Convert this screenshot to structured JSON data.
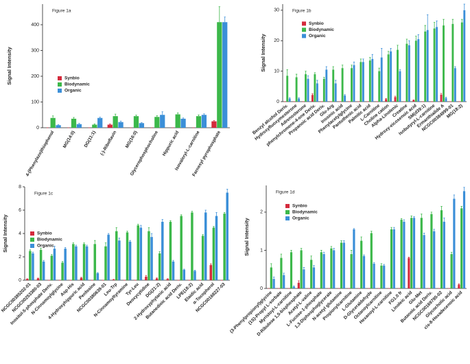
{
  "chart_data": [
    {
      "type": "bar",
      "title": "Figure 1a",
      "y_label": "Signal Intensity",
      "legend": "center-left",
      "categories": [
        "4-(Phenylazo)thiophenol",
        "MG(14:0)",
        "DG(11:1)",
        "(-)-Riboflavin",
        "MG(16:0)",
        "Glycerophosphocholine",
        "Hippuric acid",
        "Isovaleryl-L-carnitine",
        "Farnesyl pyrophosphate"
      ],
      "series": [
        {
          "name": "Synbio",
          "color": "#d42a3c",
          "values": [
            0,
            0,
            0,
            12,
            0,
            0,
            0,
            0,
            25
          ],
          "errors": [
            0,
            0,
            0,
            3,
            0,
            0,
            0,
            0,
            3
          ]
        },
        {
          "name": "Biodynamic",
          "color": "#3cb84a",
          "values": [
            38,
            35,
            12,
            45,
            45,
            42,
            52,
            45,
            410
          ],
          "errors": [
            8,
            5,
            3,
            8,
            4,
            5,
            6,
            5,
            60
          ]
        },
        {
          "name": "Organic",
          "color": "#3b8fd8",
          "values": [
            10,
            14,
            38,
            22,
            18,
            50,
            35,
            50,
            410
          ],
          "errors": [
            2,
            3,
            3,
            4,
            2,
            12,
            3,
            4,
            20
          ]
        }
      ],
      "ylim": [
        0,
        480
      ],
      "yticks": [
        0,
        100,
        200,
        300,
        400
      ]
    },
    {
      "type": "bar",
      "title": "Figure 1b",
      "y_label": "Signal Intensity",
      "legend": "upper-left",
      "categories": [
        "Benzyl alcohol Deriv.",
        "Hydroxyfluoxymesterone",
        "Adrenosterone",
        "phenylchromene-4-one Deriv.",
        "Propanoic acid Deriv.",
        "Glu-Arg",
        "Inosinic acid",
        "Phenylacetylglycine",
        "Pantothenic acid",
        "Palmitic acid",
        "L-Carnitine",
        "Choline cation",
        "Alpha-Linolenic",
        "Creatine",
        "Hydroxy-eicosenoic acid",
        "SM(d39:1)",
        "Isobutyryl-L-carnitine",
        "Ermanthialide A",
        "NCGC00384999-01",
        "MG(18:2)"
      ],
      "series": [
        {
          "name": "Synbio",
          "color": "#d42a3c",
          "values": [
            0,
            0,
            0,
            2.2,
            0,
            0,
            0,
            0,
            0,
            0,
            0,
            0.8,
            1.5,
            0,
            0.5,
            0,
            0,
            2.3,
            0,
            0
          ],
          "errors": [
            0,
            0,
            0,
            0.4,
            0,
            0,
            0,
            0,
            0,
            0,
            0,
            0.2,
            0.3,
            0,
            0.1,
            0,
            0,
            0.4,
            0,
            0
          ]
        },
        {
          "name": "Biodynamic",
          "color": "#3cb84a",
          "values": [
            8.5,
            8,
            9,
            9,
            7.5,
            10.5,
            11,
            11,
            13,
            13.5,
            10,
            15.5,
            17,
            19,
            20,
            23,
            24,
            25,
            25.5,
            26
          ],
          "errors": [
            2,
            1,
            1,
            0.5,
            0.5,
            1,
            1,
            1,
            1,
            1,
            1,
            1,
            1.5,
            1.5,
            1.5,
            2,
            2,
            2,
            1.5,
            1
          ]
        },
        {
          "name": "Organic",
          "color": "#3b8fd8",
          "values": [
            1,
            1,
            7.5,
            6,
            10.5,
            6,
            2,
            12,
            13,
            14,
            14.5,
            16.5,
            10,
            18.5,
            20.5,
            23.5,
            24.5,
            1.2,
            11,
            30
          ],
          "errors": [
            0.3,
            0.3,
            1,
            1,
            1,
            1,
            0.3,
            1,
            1,
            1.5,
            3,
            1,
            0.5,
            1.5,
            1.5,
            5,
            2,
            0.3,
            0.5,
            2
          ]
        }
      ],
      "ylim": [
        0,
        32
      ],
      "yticks": [
        0,
        10,
        20,
        30
      ]
    },
    {
      "type": "bar",
      "title": "Figure 1c",
      "y_label": "Signal Intensity",
      "legend": "lower-left",
      "categories": [
        "NCGC00385202-01",
        "NCGC00253380-03",
        "Inositol-5-phosphate Deriv.",
        "N-Cinnamoylglycine",
        "Asp-His",
        "4-Hydroxyhippuric acid",
        "Penfosine",
        "NCGC00380639-01",
        "Leu-Trp",
        "N-Cinnamoyltyramine",
        "Tyr-Leu",
        "Deoxycytidine",
        "DG(21:2)",
        "2-Hydroxyphytanic acid",
        "Butanedioic acid Deriv.",
        "LPE(18:2)",
        "Elaidic acid",
        "α-Tocopherol",
        "NCGC00168227-03"
      ],
      "series": [
        {
          "name": "Synbio",
          "color": "#d42a3c",
          "values": [
            0.1,
            0.15,
            0,
            0,
            0,
            0.2,
            0,
            0,
            0.05,
            0,
            0,
            0.3,
            0.15,
            0.1,
            0,
            0,
            0,
            1.3,
            0
          ],
          "errors": [
            0.02,
            0.03,
            0,
            0,
            0,
            0.05,
            0,
            0,
            0.02,
            0,
            0,
            0.1,
            0.05,
            0.03,
            0,
            0,
            0,
            0.1,
            0
          ]
        },
        {
          "name": "Biodynamic",
          "color": "#3cb84a",
          "values": [
            2.5,
            2.6,
            2.1,
            1.5,
            3.1,
            3.1,
            3.1,
            2.9,
            4.2,
            4.1,
            4.7,
            4.2,
            2.3,
            5.0,
            5.5,
            5.8,
            3.8,
            4.5,
            5.7
          ],
          "errors": [
            0.1,
            0.15,
            0.1,
            0.1,
            0.1,
            0.1,
            0.3,
            0.3,
            0.3,
            0.1,
            0.1,
            0.3,
            0.15,
            0.1,
            0.1,
            0.1,
            0.1,
            0.1,
            0.1
          ]
        },
        {
          "name": "Organic",
          "color": "#3b8fd8",
          "values": [
            2.3,
            1.6,
            2.7,
            2.7,
            2.9,
            2.9,
            0.6,
            3.9,
            3.4,
            3.3,
            4.5,
            3.7,
            5.0,
            1.6,
            0.9,
            0.8,
            5.8,
            5.5,
            7.5
          ],
          "errors": [
            0.1,
            0.1,
            0.2,
            0.1,
            0.1,
            0.1,
            0.05,
            0.1,
            0.2,
            0.1,
            0.2,
            0.3,
            0.2,
            0.1,
            0.05,
            0.05,
            0.2,
            0.3,
            0.3
          ]
        }
      ],
      "ylim": [
        0,
        8
      ],
      "yticks": [
        0,
        2,
        4,
        6,
        8
      ]
    },
    {
      "type": "bar",
      "title": "Figure 1d",
      "y_label": "Signal Intensity",
      "legend": "upper-left",
      "categories": [
        "(3-Phenylpropionyl)glycine",
        "(1S)-Propyl L-sorbate",
        "Myristoyl-L-carnitine",
        "D-Ribulose 1,5-bisphosphate",
        "Acetyl-L-valine",
        "L-Fucose-1-phosphate",
        "1,3-Diphosphoglycerate",
        "N-acetyl glutamine",
        "Propionylcarnitine",
        "L-Glutamine",
        "D-Glyceraldehyde",
        "Octanoylcarnitine",
        "Hexanoyl-L-carnitine",
        "FG1.0 fr",
        "Linoleic acid",
        "Glu-Met",
        "Butanoic acid Deriv.",
        "NCGC00169795-02",
        "Glycocholic acid",
        "cis-8-Hexadecenoic acid"
      ],
      "series": [
        {
          "name": "Synbio",
          "color": "#d42a3c",
          "values": [
            0,
            0,
            0,
            0.15,
            0,
            0,
            0,
            0,
            0,
            0,
            0,
            0,
            0,
            0,
            0.8,
            0,
            0,
            0,
            0,
            0.1
          ],
          "errors": [
            0,
            0,
            0,
            0.05,
            0,
            0,
            0,
            0,
            0,
            0,
            0,
            0,
            0,
            0,
            0.02,
            0,
            0,
            0,
            0,
            0.02
          ]
        },
        {
          "name": "Biodynamic",
          "color": "#3cb84a",
          "values": [
            0.55,
            0.8,
            0.95,
            1.0,
            0.75,
            0.95,
            1.05,
            1.2,
            0.9,
            1.25,
            1.45,
            0.6,
            1.55,
            1.8,
            1.85,
            1.85,
            1.95,
            2.05,
            0.9,
            2.1
          ],
          "errors": [
            0.1,
            0.1,
            0.05,
            0.05,
            0.1,
            0.05,
            0.05,
            0.05,
            0.1,
            0.1,
            0.05,
            0.05,
            0.05,
            0.03,
            0.05,
            0.1,
            0.05,
            0.1,
            0.05,
            0.05
          ]
        },
        {
          "name": "Organic",
          "color": "#3b8fd8",
          "values": [
            0.25,
            0.35,
            0.05,
            0.5,
            0.55,
            0.9,
            1.0,
            1.2,
            1.55,
            0.85,
            0.65,
            0.6,
            1.55,
            1.75,
            1.85,
            1.4,
            1.5,
            1.75,
            2.35,
            2.55
          ],
          "errors": [
            0.05,
            0.05,
            0.02,
            0.05,
            0.05,
            0.05,
            0.05,
            0.05,
            0.02,
            0.03,
            0.03,
            0.03,
            0.05,
            0.05,
            0.03,
            0.05,
            0.05,
            0.1,
            0.1,
            0.1
          ]
        }
      ],
      "ylim": [
        0,
        2.7
      ],
      "yticks": [
        0,
        1,
        2
      ]
    }
  ]
}
